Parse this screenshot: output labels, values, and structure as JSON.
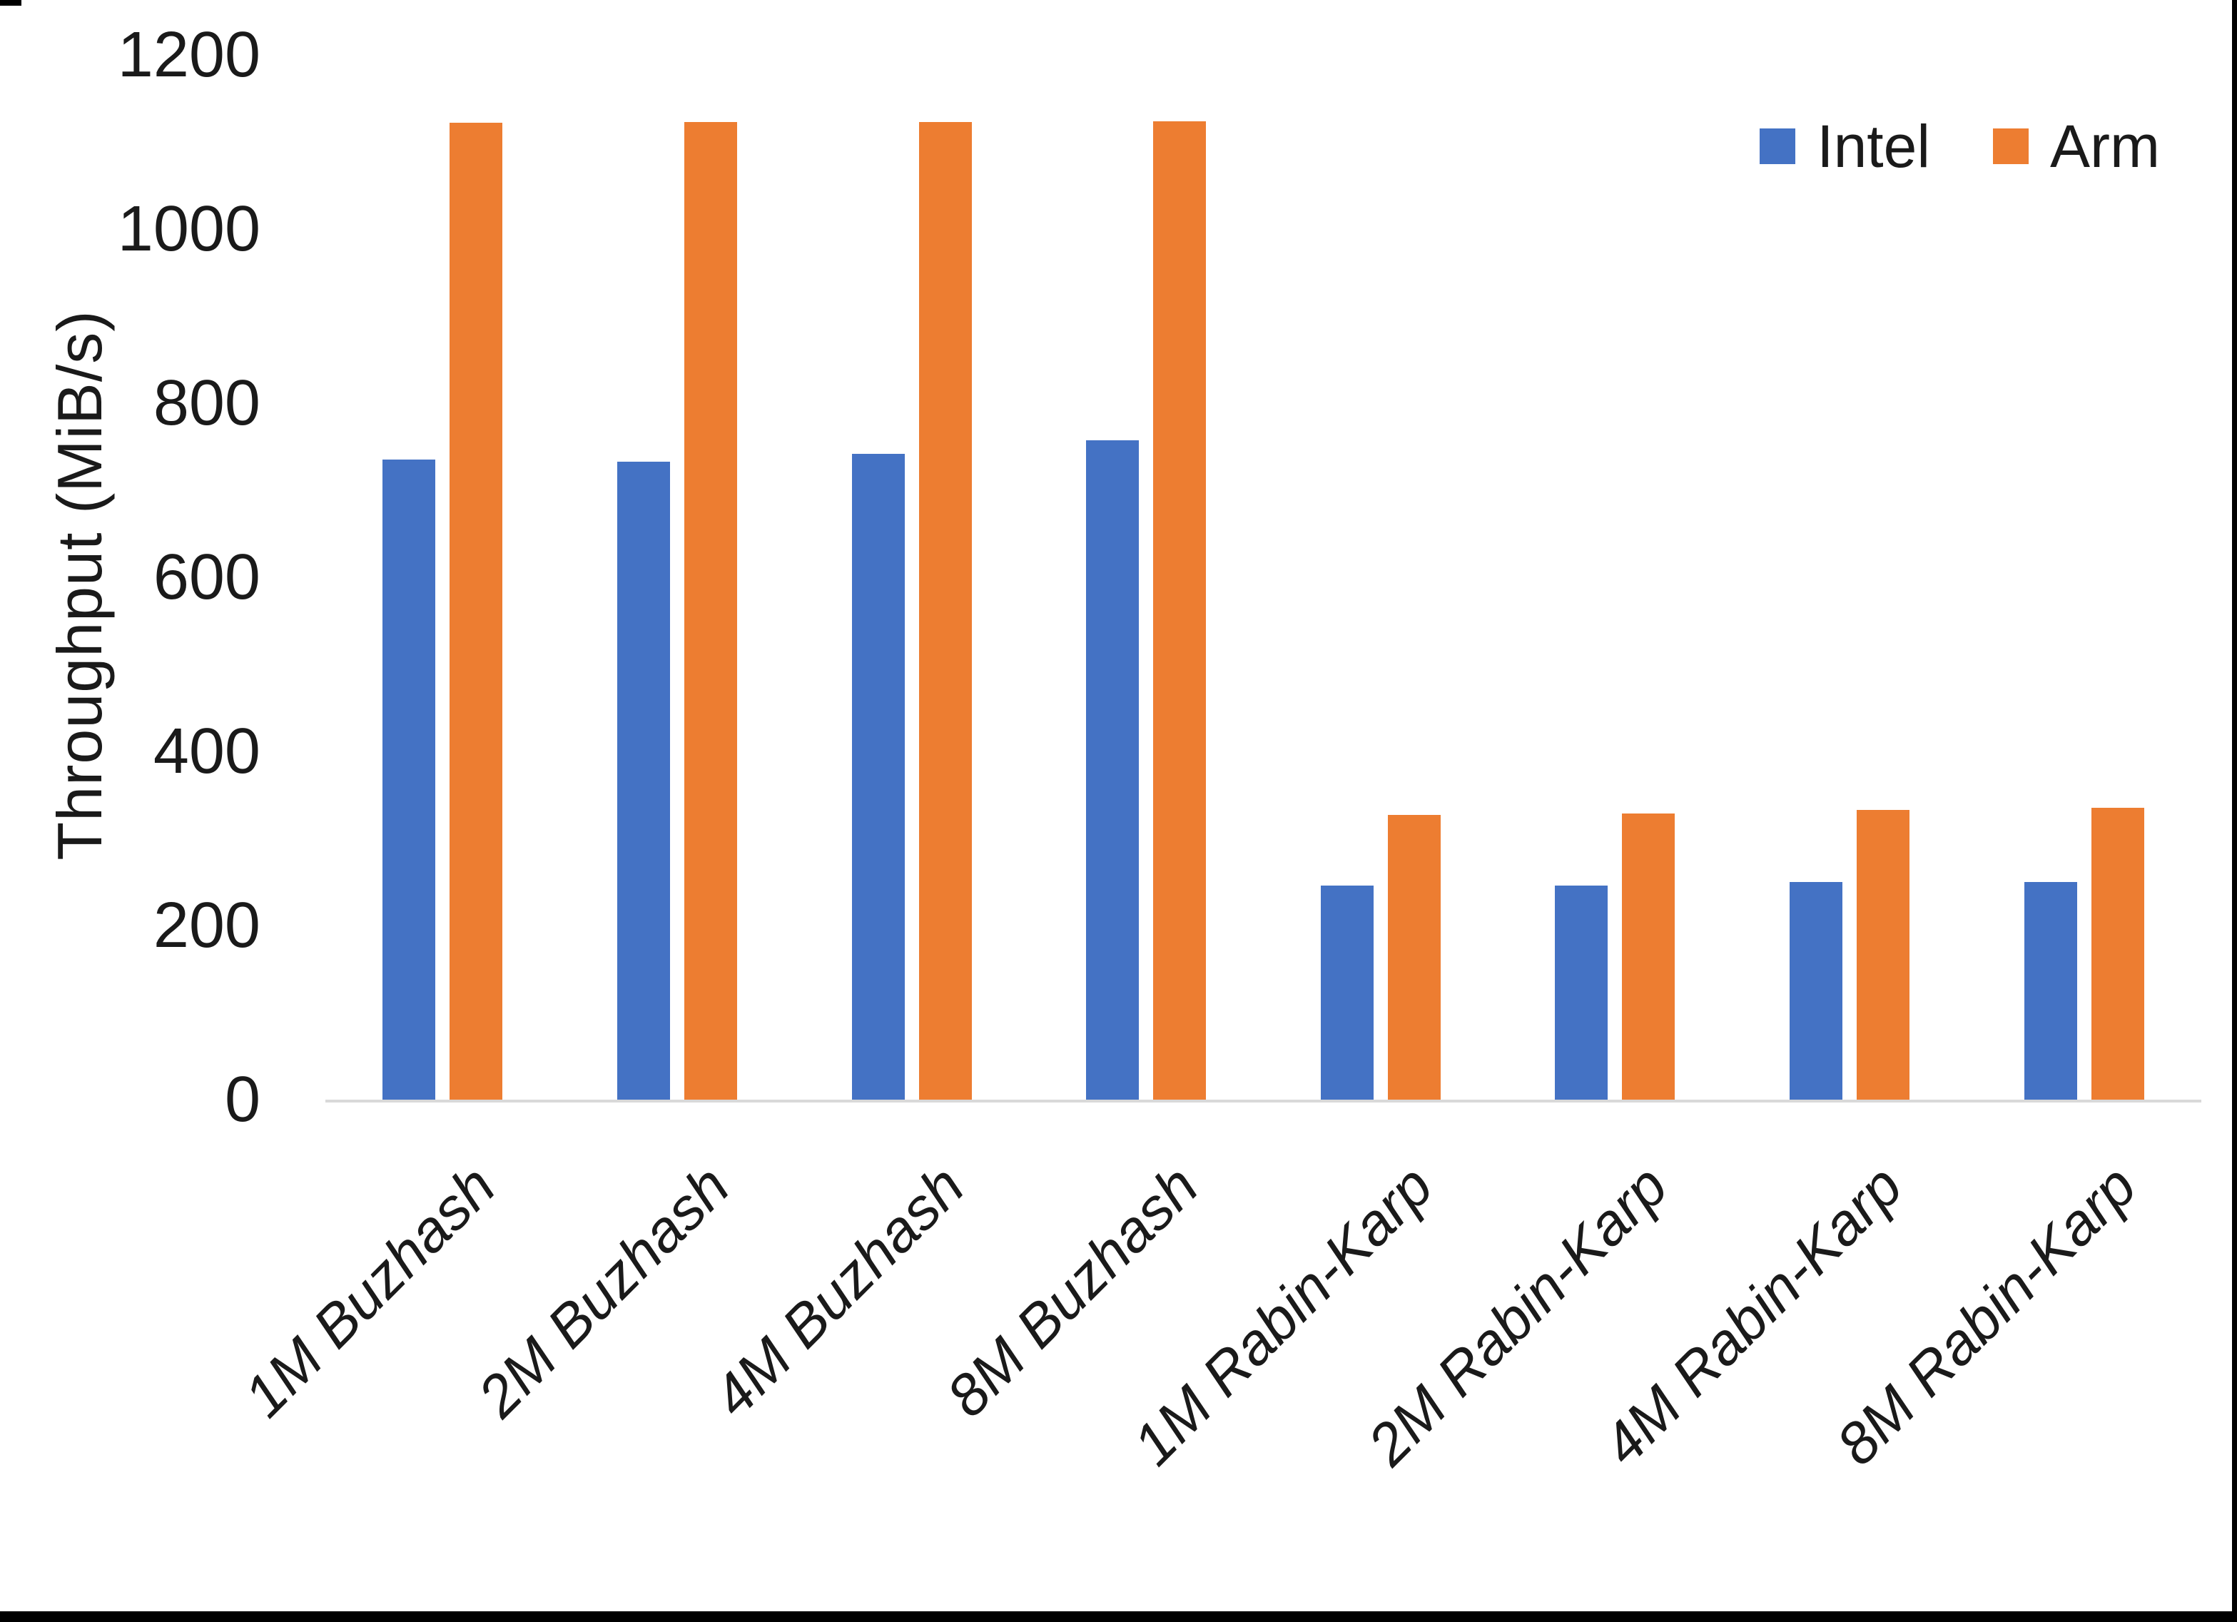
{
  "chart_data": {
    "type": "bar",
    "title": "",
    "categories": [
      "1M Buzhash",
      "2M Buzhash",
      "4M Buzhash",
      "8M Buzhash",
      "1M Rabin-Karp",
      "2M Rabin-Karp",
      "4M Rabin-Karp",
      "8M Rabin-Karp"
    ],
    "series": [
      {
        "name": "Intel",
        "color": "#4472C4",
        "values": [
          735,
          733,
          742,
          757,
          246,
          246,
          250,
          250
        ]
      },
      {
        "name": "Arm",
        "color": "#ED7D31",
        "values": [
          1122,
          1123,
          1123,
          1124,
          327,
          329,
          333,
          335
        ]
      }
    ],
    "xlabel": "",
    "ylabel": "Throughput (MiB/s)",
    "ylim": [
      0,
      1200
    ],
    "yticks": [
      0,
      200,
      400,
      600,
      800,
      1000,
      1200
    ],
    "grid": false,
    "legend_position": "top-right"
  },
  "colors": {
    "intel": "#4472C4",
    "arm": "#ED7D31",
    "axis_line": "#D9D9D9",
    "text": "#1a1a1a",
    "frame": "#000000",
    "background": "#FFFFFF"
  }
}
